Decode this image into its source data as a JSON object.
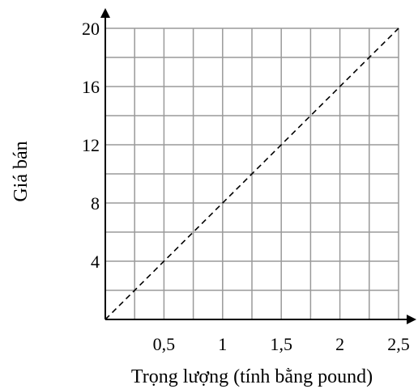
{
  "chart_data": {
    "type": "line",
    "xlabel": "Trọng lượng (tính bằng pound)",
    "ylabel": "Giá bán",
    "x_ticks": [
      "0,5",
      "1",
      "1,5",
      "2",
      "2,5"
    ],
    "y_ticks": [
      "4",
      "8",
      "12",
      "16",
      "20"
    ],
    "x_tick_values": [
      0.5,
      1,
      1.5,
      2,
      2.5
    ],
    "y_tick_values": [
      4,
      8,
      12,
      16,
      20
    ],
    "xlim": [
      0,
      2.5
    ],
    "ylim": [
      0,
      20
    ],
    "grid": true,
    "x_grid_step": 0.25,
    "y_grid_step": 2,
    "series": [
      {
        "style": "dashed",
        "x": [
          0,
          2.5
        ],
        "y": [
          0,
          20
        ]
      }
    ]
  }
}
